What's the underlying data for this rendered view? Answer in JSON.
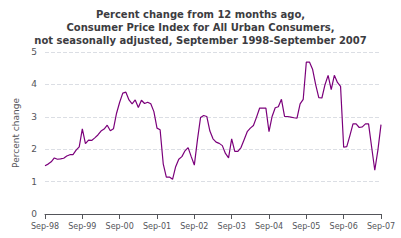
{
  "chart_data": {
    "type": "line",
    "title": "Percent change from 12 months ago,\nConsumer Price Index for All Urban Consumers,\nnot seasonally adjusted, September 1998-September 2007",
    "ylabel": "Percent change",
    "categories": [
      "Sep-98",
      null,
      null,
      null,
      null,
      null,
      null,
      null,
      null,
      null,
      null,
      null,
      "Sep-99",
      null,
      null,
      null,
      null,
      null,
      null,
      null,
      null,
      null,
      null,
      null,
      "Sep-00",
      null,
      null,
      null,
      null,
      null,
      null,
      null,
      null,
      null,
      null,
      null,
      "Sep-01",
      null,
      null,
      null,
      null,
      null,
      null,
      null,
      null,
      null,
      null,
      null,
      "Sep-02",
      null,
      null,
      null,
      null,
      null,
      null,
      null,
      null,
      null,
      null,
      null,
      "Sep-03",
      null,
      null,
      null,
      null,
      null,
      null,
      null,
      null,
      null,
      null,
      null,
      "Sep-04",
      null,
      null,
      null,
      null,
      null,
      null,
      null,
      null,
      null,
      null,
      null,
      "Sep-05",
      null,
      null,
      null,
      null,
      null,
      null,
      null,
      null,
      null,
      null,
      null,
      "Sep-06",
      null,
      null,
      null,
      null,
      null,
      null,
      null,
      null,
      null,
      null,
      null,
      "Sep-07"
    ],
    "values": [
      1.49,
      1.54,
      1.61,
      1.73,
      1.69,
      1.7,
      1.72,
      1.79,
      1.83,
      1.83,
      1.97,
      2.07,
      2.63,
      2.17,
      2.28,
      2.27,
      2.35,
      2.44,
      2.56,
      2.62,
      2.74,
      2.57,
      2.63,
      3.11,
      3.45,
      3.73,
      3.76,
      3.52,
      3.4,
      3.52,
      3.29,
      3.51,
      3.41,
      3.45,
      3.4,
      3.16,
      2.65,
      2.6,
      1.55,
      1.14,
      1.14,
      1.07,
      1.46,
      1.69,
      1.77,
      1.95,
      2.05,
      1.77,
      1.51,
      2.29,
      2.98,
      3.04,
      3.01,
      2.56,
      2.32,
      2.22,
      2.18,
      2.11,
      1.87,
      1.73,
      2.32,
      1.93,
      1.93,
      2.05,
      2.29,
      2.54,
      2.65,
      2.73,
      2.99,
      3.27,
      3.27,
      3.27,
      2.54,
      3.01,
      3.28,
      3.31,
      3.54,
      3.01,
      3.01,
      2.99,
      2.97,
      2.96,
      3.4,
      3.54,
      4.69,
      4.69,
      4.47,
      3.99,
      3.59,
      3.58,
      3.99,
      4.28,
      3.84,
      4.28,
      4.06,
      3.94,
      2.06,
      2.08,
      2.42,
      2.78,
      2.78,
      2.67,
      2.69,
      2.78,
      2.78,
      2.06,
      1.35,
      1.97,
      2.76
    ],
    "color": "#7B007B",
    "ylim": [
      0,
      5
    ],
    "yticks": [
      0,
      1,
      2,
      3,
      4,
      5
    ],
    "grid": true
  }
}
